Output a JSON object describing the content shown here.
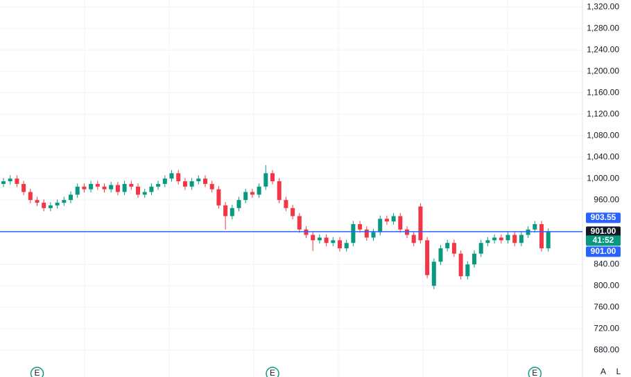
{
  "chart_data": {
    "type": "candlestick",
    "up_color": "#089981",
    "down_color": "#f23645",
    "grid": true,
    "ylim": [
      630,
      1333
    ],
    "yticks": [
      {
        "value": 680,
        "label": "680.00"
      },
      {
        "value": 720,
        "label": "720.00"
      },
      {
        "value": 760,
        "label": "760.00"
      },
      {
        "value": 800,
        "label": "800.00"
      },
      {
        "value": 840,
        "label": "840.00"
      },
      {
        "value": 960,
        "label": "960.00"
      },
      {
        "value": 1000,
        "label": "1,000.00"
      },
      {
        "value": 1040,
        "label": "1,040.00"
      },
      {
        "value": 1080,
        "label": "1,080.00"
      },
      {
        "value": 1120,
        "label": "1,120.00"
      },
      {
        "value": 1160,
        "label": "1,160.00"
      },
      {
        "value": 1200,
        "label": "1,200.00"
      },
      {
        "value": 1240,
        "label": "1,240.00"
      },
      {
        "value": 1280,
        "label": "1,280.00"
      },
      {
        "value": 1320,
        "label": "1,320.00"
      }
    ],
    "open": [
      990,
      995,
      1000,
      990,
      975,
      960,
      955,
      945,
      950,
      955,
      960,
      970,
      985,
      980,
      990,
      985,
      980,
      988,
      975,
      990,
      985,
      970,
      975,
      985,
      990,
      1000,
      1010,
      995,
      985,
      995,
      1000,
      990,
      980,
      950,
      930,
      945,
      960,
      975,
      970,
      985,
      1010,
      995,
      960,
      945,
      930,
      905,
      895,
      885,
      890,
      880,
      885,
      870,
      880,
      915,
      905,
      890,
      900,
      925,
      920,
      930,
      905,
      895,
      948,
      885,
      800,
      845,
      870,
      880,
      860,
      818,
      840,
      860,
      880,
      885,
      890,
      885,
      895,
      880,
      895,
      905,
      915,
      870
    ],
    "high": [
      1001,
      1006,
      1006,
      996,
      981,
      966,
      961,
      956,
      961,
      966,
      976,
      991,
      991,
      996,
      996,
      991,
      994,
      994,
      996,
      996,
      991,
      981,
      991,
      996,
      1006,
      1016,
      1016,
      1001,
      1001,
      1006,
      1006,
      996,
      986,
      956,
      951,
      966,
      981,
      981,
      991,
      1025,
      1016,
      1001,
      966,
      951,
      936,
      911,
      901,
      896,
      896,
      891,
      891,
      886,
      921,
      921,
      911,
      906,
      931,
      931,
      936,
      936,
      911,
      901,
      954,
      891,
      851,
      876,
      886,
      886,
      866,
      846,
      866,
      886,
      891,
      896,
      896,
      901,
      901,
      901,
      911,
      921,
      921,
      907
    ],
    "low": [
      984,
      989,
      984,
      969,
      954,
      949,
      939,
      939,
      944,
      949,
      954,
      964,
      974,
      974,
      979,
      974,
      974,
      969,
      969,
      979,
      964,
      964,
      969,
      979,
      984,
      994,
      989,
      979,
      979,
      989,
      984,
      974,
      944,
      905,
      924,
      939,
      954,
      964,
      964,
      979,
      989,
      954,
      939,
      924,
      899,
      889,
      865,
      879,
      874,
      874,
      864,
      864,
      874,
      899,
      884,
      884,
      894,
      914,
      914,
      899,
      889,
      874,
      879,
      814,
      794,
      839,
      864,
      854,
      812,
      812,
      834,
      854,
      874,
      879,
      879,
      879,
      874,
      874,
      889,
      899,
      864,
      864
    ],
    "close": [
      995,
      1000,
      990,
      975,
      960,
      955,
      945,
      950,
      955,
      960,
      970,
      985,
      980,
      990,
      985,
      980,
      988,
      975,
      990,
      985,
      970,
      975,
      985,
      990,
      1000,
      1010,
      995,
      985,
      995,
      1000,
      990,
      980,
      950,
      930,
      945,
      960,
      975,
      970,
      985,
      1010,
      995,
      960,
      945,
      930,
      905,
      895,
      885,
      890,
      880,
      885,
      870,
      880,
      915,
      905,
      890,
      900,
      925,
      920,
      930,
      905,
      895,
      880,
      885,
      820,
      845,
      870,
      880,
      860,
      818,
      840,
      860,
      880,
      885,
      890,
      885,
      895,
      880,
      895,
      905,
      915,
      870,
      901
    ],
    "price_labels": [
      {
        "value": 903.55,
        "label": "903.55",
        "color": "#2962ff"
      },
      {
        "value": 901,
        "label": "901.00",
        "color": "#131722"
      },
      {
        "text": "41:52",
        "color": "#089981"
      },
      {
        "value": 901,
        "label": "901.00",
        "color": "#2962ff"
      }
    ],
    "last_line_color": "#2962ff",
    "events": [
      {
        "index": 5,
        "label": "E"
      },
      {
        "index": 40,
        "label": "E"
      },
      {
        "index": 79,
        "label": "E"
      }
    ],
    "buttons": [
      "A",
      "L"
    ]
  }
}
